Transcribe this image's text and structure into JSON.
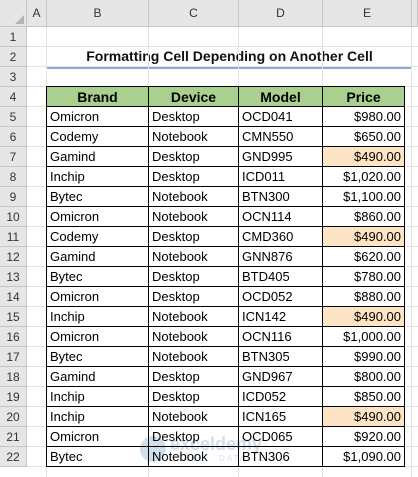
{
  "columns": [
    "A",
    "B",
    "C",
    "D",
    "E"
  ],
  "rows": [
    "1",
    "2",
    "3",
    "4",
    "5",
    "6",
    "7",
    "8",
    "9",
    "10",
    "11",
    "12",
    "13",
    "14",
    "15",
    "16",
    "17",
    "18",
    "19",
    "20",
    "21",
    "22"
  ],
  "title": "Formatting Cell Depending on Another Cell",
  "table": {
    "headers": [
      "Brand",
      "Device",
      "Model",
      "Price"
    ],
    "rows": [
      {
        "brand": "Omicron",
        "device": "Desktop",
        "model": "OCD041",
        "price": "$980.00",
        "highlight": false
      },
      {
        "brand": "Codemy",
        "device": "Notebook",
        "model": "CMN550",
        "price": "$650.00",
        "highlight": false
      },
      {
        "brand": "Gamind",
        "device": "Desktop",
        "model": "GND995",
        "price": "$490.00",
        "highlight": true
      },
      {
        "brand": "Inchip",
        "device": "Desktop",
        "model": "ICD011",
        "price": "$1,020.00",
        "highlight": false
      },
      {
        "brand": "Bytec",
        "device": "Notebook",
        "model": "BTN300",
        "price": "$1,100.00",
        "highlight": false
      },
      {
        "brand": "Omicron",
        "device": "Notebook",
        "model": "OCN114",
        "price": "$860.00",
        "highlight": false
      },
      {
        "brand": "Codemy",
        "device": "Desktop",
        "model": "CMD360",
        "price": "$490.00",
        "highlight": true
      },
      {
        "brand": "Gamind",
        "device": "Notebook",
        "model": "GNN876",
        "price": "$620.00",
        "highlight": false
      },
      {
        "brand": "Bytec",
        "device": "Desktop",
        "model": "BTD405",
        "price": "$780.00",
        "highlight": false
      },
      {
        "brand": "Omicron",
        "device": "Desktop",
        "model": "OCD052",
        "price": "$880.00",
        "highlight": false
      },
      {
        "brand": "Inchip",
        "device": "Notebook",
        "model": "ICN142",
        "price": "$490.00",
        "highlight": true
      },
      {
        "brand": "Omicron",
        "device": "Notebook",
        "model": "OCN116",
        "price": "$1,000.00",
        "highlight": false
      },
      {
        "brand": "Bytec",
        "device": "Notebook",
        "model": "BTN305",
        "price": "$990.00",
        "highlight": false
      },
      {
        "brand": "Gamind",
        "device": "Desktop",
        "model": "GND967",
        "price": "$800.00",
        "highlight": false
      },
      {
        "brand": "Inchip",
        "device": "Desktop",
        "model": "ICD052",
        "price": "$850.00",
        "highlight": false
      },
      {
        "brand": "Inchip",
        "device": "Notebook",
        "model": "ICN165",
        "price": "$490.00",
        "highlight": true
      },
      {
        "brand": "Omicron",
        "device": "Desktop",
        "model": "OCD065",
        "price": "$920.00",
        "highlight": false
      },
      {
        "brand": "Bytec",
        "device": "Notebook",
        "model": "BTN306",
        "price": "$1,090.00",
        "highlight": false
      }
    ]
  },
  "colors": {
    "header_fill": "#a9d08e",
    "highlight_fill": "#fce4c4",
    "title_underline": "#8ea9db"
  },
  "watermark": {
    "text": "exceldemy",
    "subtext": "EXCEL · DATA · BI"
  }
}
